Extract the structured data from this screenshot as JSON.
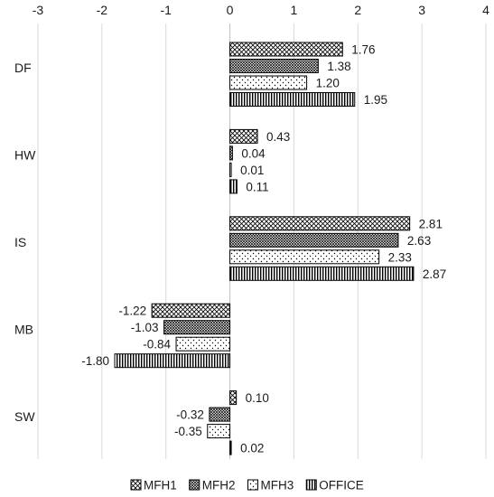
{
  "chart_data": {
    "type": "bar",
    "orientation": "horizontal",
    "categories": [
      "DF",
      "HW",
      "IS",
      "MB",
      "SW"
    ],
    "series": [
      {
        "name": "MFH1",
        "values": [
          1.76,
          0.43,
          2.81,
          -1.22,
          0.1
        ],
        "labels": [
          "1.76",
          "0.43",
          "2.81",
          "-1.22",
          "0.10"
        ],
        "pattern": "crosshatch"
      },
      {
        "name": "MFH2",
        "values": [
          1.38,
          0.04,
          2.63,
          -1.03,
          -0.32
        ],
        "labels": [
          "1.38",
          "0.04",
          "2.63",
          "-1.03",
          "-0.32"
        ],
        "pattern": "dense-crosshatch"
      },
      {
        "name": "MFH3",
        "values": [
          1.2,
          0.01,
          2.33,
          -0.84,
          -0.35
        ],
        "labels": [
          "1.20",
          "0.01",
          "2.33",
          "-0.84",
          "-0.35"
        ],
        "pattern": "dots"
      },
      {
        "name": "OFFICE",
        "values": [
          1.95,
          0.11,
          2.87,
          -1.8,
          0.02
        ],
        "labels": [
          "1.95",
          "0.11",
          "2.87",
          "-1.80",
          "0.02"
        ],
        "pattern": "vertical-stripes"
      }
    ],
    "xlim": [
      -3,
      4
    ],
    "xticks": [
      "-3",
      "-2",
      "-1",
      "0",
      "1",
      "2",
      "3",
      "4"
    ],
    "axis_position": "top",
    "grid": true,
    "legend_position": "bottom",
    "colors": {
      "bar_stroke": "#000000",
      "grid": "#d9d9d9",
      "text": "#1a1a1a"
    }
  }
}
